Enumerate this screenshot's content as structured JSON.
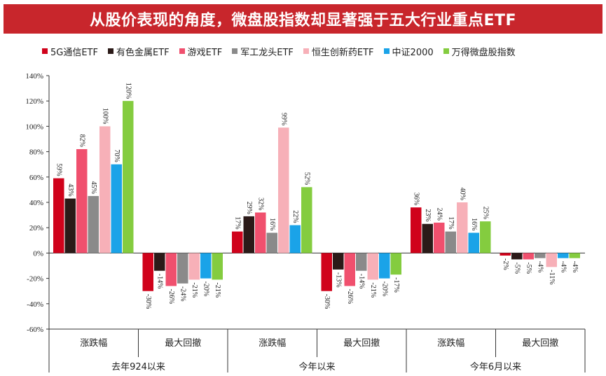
{
  "title": "从股价表现的角度，微盘股指数却显著强于五大行业重点ETF",
  "chart_data": {
    "type": "bar",
    "series": [
      {
        "name": "5G通信ETF",
        "color": "#d0021b",
        "values": [
          59,
          -30,
          17,
          -30,
          36,
          -2
        ]
      },
      {
        "name": "有色金属ETF",
        "color": "#2b1a18",
        "values": [
          43,
          -14,
          29,
          -13,
          23,
          -5
        ]
      },
      {
        "name": "游戏ETF",
        "color": "#f0506e",
        "values": [
          82,
          -26,
          32,
          -26,
          24,
          -5
        ]
      },
      {
        "name": "军工龙头ETF",
        "color": "#8a8a8a",
        "values": [
          45,
          -24,
          16,
          -14,
          17,
          -4
        ]
      },
      {
        "name": "恒生创新药ETF",
        "color": "#f7b0b8",
        "values": [
          100,
          -21,
          99,
          -21,
          40,
          -11
        ]
      },
      {
        "name": "中证2000",
        "color": "#1aa3e8",
        "values": [
          70,
          -20,
          22,
          -20,
          16,
          -4
        ]
      },
      {
        "name": "万得微盘股指数",
        "color": "#84cc3f",
        "values": [
          120,
          -21,
          52,
          -17,
          25,
          -4
        ]
      }
    ],
    "data_labels": [
      [
        "59%",
        "-30%",
        "17%",
        "-30%",
        "36%",
        "-2%"
      ],
      [
        "43%",
        "-14%",
        "29%",
        "-13%",
        "23%",
        "-5%"
      ],
      [
        "82%",
        "-26%",
        "32%",
        "-26%",
        "24%",
        "-5%"
      ],
      [
        "45%",
        "-24%",
        "16%",
        "-14%",
        "17%",
        "-4%"
      ],
      [
        "100%",
        "-21%",
        "99%",
        "-21%",
        "40%",
        "-11%"
      ],
      [
        "70%",
        "-20%",
        "22%",
        "-20%",
        "16%",
        "-4%"
      ],
      [
        "120%",
        "-21%",
        "52%",
        "-17%",
        "25%",
        "-4%"
      ]
    ],
    "categories": [
      "涨跌幅",
      "最大回撤",
      "涨跌幅",
      "最大回撤",
      "涨跌幅",
      "最大回撤"
    ],
    "groups": [
      "去年924以来",
      "今年以来",
      "今年6月以来"
    ],
    "y_ticks": [
      "140%",
      "120%",
      "100%",
      "80%",
      "60%",
      "40%",
      "20%",
      "0%",
      "-20%",
      "-40%",
      "-60%"
    ],
    "ylim": [
      -60,
      140
    ],
    "legend_position": "top",
    "grid": false
  }
}
